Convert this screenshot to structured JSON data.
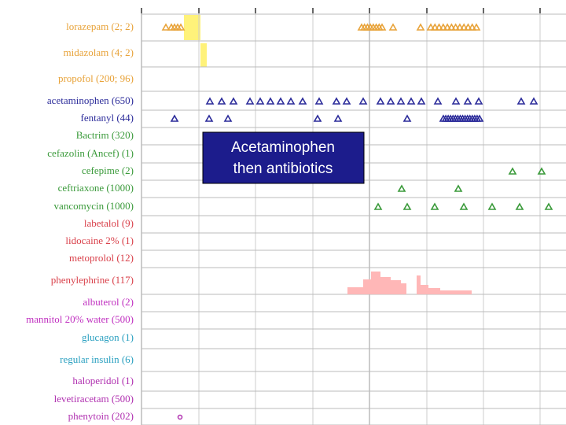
{
  "rows": [
    {
      "label": "lorazepam (2; 2)",
      "color": "#e8a33a"
    },
    {
      "label": "midazolam (4; 2)",
      "color": "#e8a33a"
    },
    {
      "label": "propofol (200; 96)",
      "color": "#e8a33a"
    },
    {
      "label": "acetaminophen (650)",
      "color": "#2b2b9a"
    },
    {
      "label": "fentanyl (44)",
      "color": "#2b2b9a"
    },
    {
      "label": "Bactrim (320)",
      "color": "#3a9a3a"
    },
    {
      "label": "cefazolin (Ancef) (1)",
      "color": "#3a9a3a"
    },
    {
      "label": "cefepime (2)",
      "color": "#3a9a3a"
    },
    {
      "label": "ceftriaxone (1000)",
      "color": "#3a9a3a"
    },
    {
      "label": "vancomycin (1000)",
      "color": "#3a9a3a"
    },
    {
      "label": "labetalol (9)",
      "color": "#d9404a"
    },
    {
      "label": "lidocaine 2% (1)",
      "color": "#d9404a"
    },
    {
      "label": "metoprolol (12)",
      "color": "#d9404a"
    },
    {
      "label": "phenylephrine (117)",
      "color": "#d9404a"
    },
    {
      "label": "albuterol (2)",
      "color": "#c030c0"
    },
    {
      "label": "mannitol 20% water (500)",
      "color": "#c030c0"
    },
    {
      "label": "glucagon (1)",
      "color": "#2aa0c0"
    },
    {
      "label": "regular insulin (6)",
      "color": "#2aa0c0"
    },
    {
      "label": "haloperidol (1)",
      "color": "#b030b0"
    },
    {
      "label": "levetiracetam (500)",
      "color": "#b030b0"
    },
    {
      "label": "phenytoin (202)",
      "color": "#b030b0"
    }
  ],
  "callout": {
    "lines": [
      "Acetaminophen",
      "then antibiotics"
    ]
  }
}
